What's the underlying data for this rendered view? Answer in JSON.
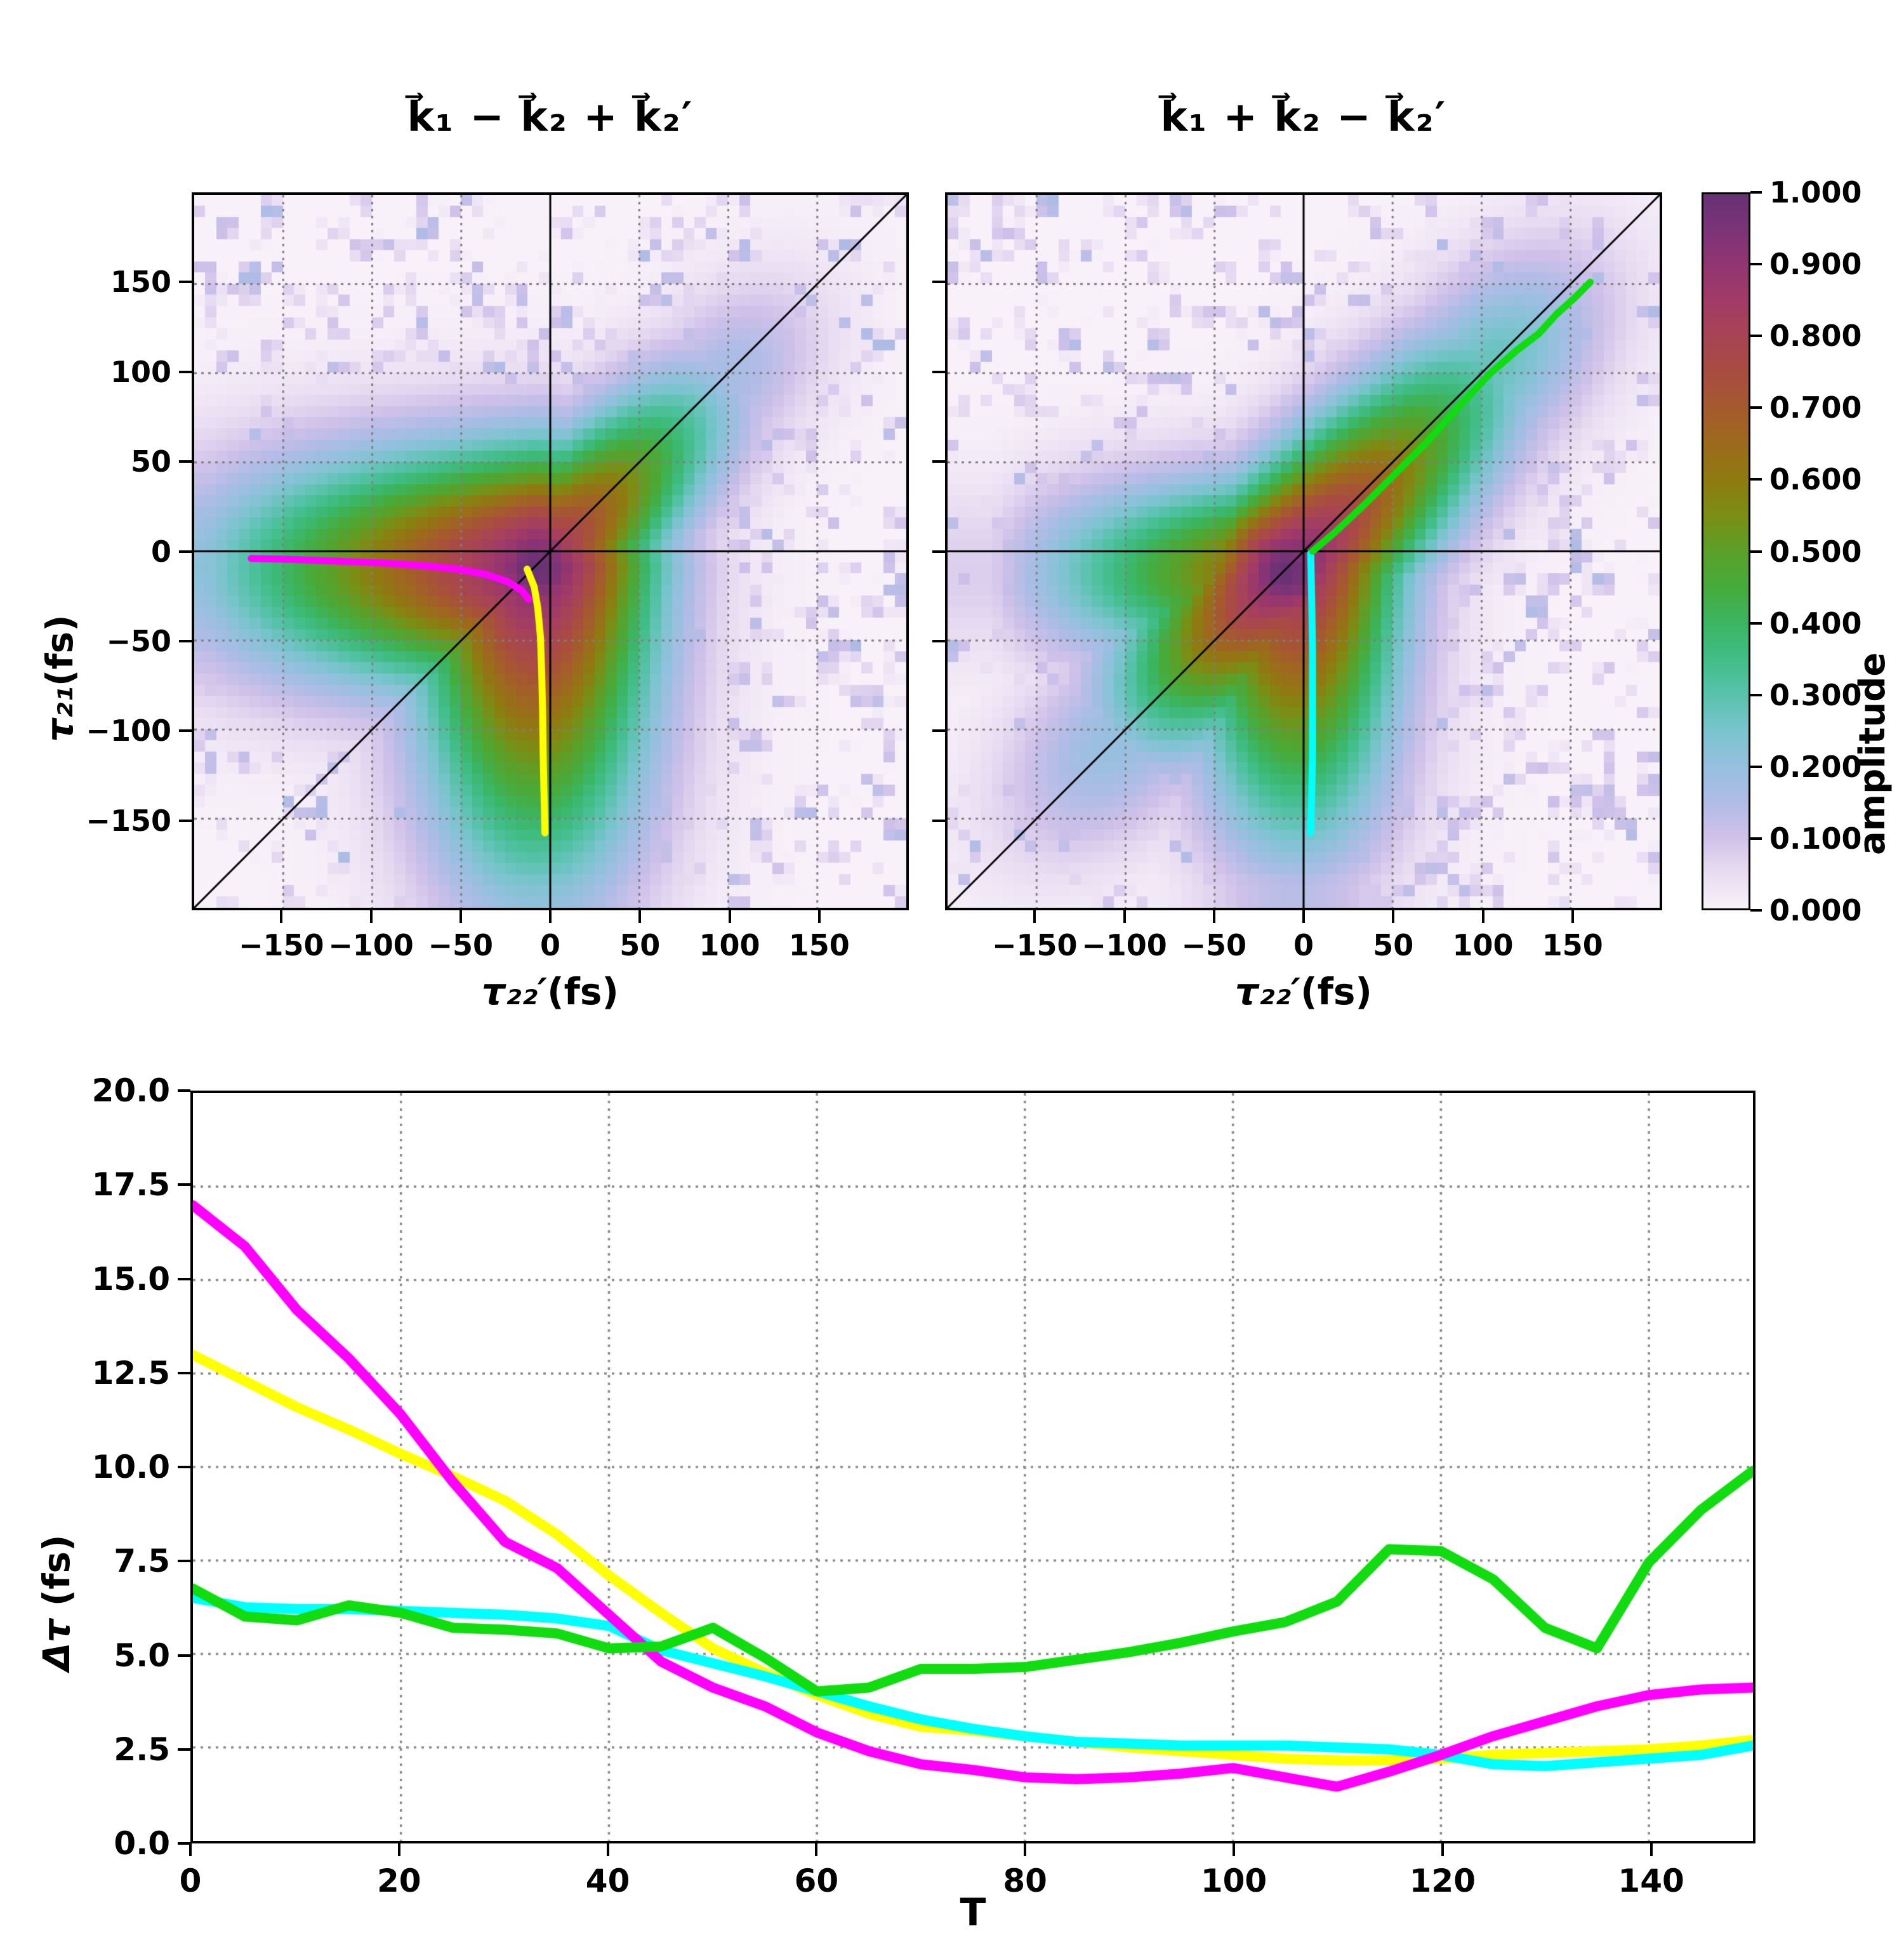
{
  "figure": {
    "background": "#ffffff"
  },
  "colormap": {
    "stops": [
      [
        0.0,
        "#f8f1f9"
      ],
      [
        0.05,
        "#e8dcf2"
      ],
      [
        0.1,
        "#cfc1e9"
      ],
      [
        0.15,
        "#b0bce6"
      ],
      [
        0.2,
        "#95c0de"
      ],
      [
        0.25,
        "#79c4cd"
      ],
      [
        0.3,
        "#58c2ab"
      ],
      [
        0.35,
        "#41bd87"
      ],
      [
        0.4,
        "#3bb562"
      ],
      [
        0.45,
        "#47ab3b"
      ],
      [
        0.5,
        "#5ba029"
      ],
      [
        0.55,
        "#7b8e15"
      ],
      [
        0.6,
        "#8f7a11"
      ],
      [
        0.65,
        "#9d6a1d"
      ],
      [
        0.7,
        "#a55a2e"
      ],
      [
        0.75,
        "#a94c41"
      ],
      [
        0.8,
        "#a84455"
      ],
      [
        0.85,
        "#a23b66"
      ],
      [
        0.9,
        "#923571"
      ],
      [
        0.95,
        "#7c3378"
      ],
      [
        1.0,
        "#663273"
      ]
    ]
  },
  "colorbar": {
    "label": "amplitude",
    "ticks": [
      {
        "v": 0.0,
        "label": "0.000"
      },
      {
        "v": 0.1,
        "label": "0.100"
      },
      {
        "v": 0.2,
        "label": "0.200"
      },
      {
        "v": 0.3,
        "label": "0.300"
      },
      {
        "v": 0.4,
        "label": "0.400"
      },
      {
        "v": 0.5,
        "label": "0.500"
      },
      {
        "v": 0.6,
        "label": "0.600"
      },
      {
        "v": 0.7,
        "label": "0.700"
      },
      {
        "v": 0.8,
        "label": "0.800"
      },
      {
        "v": 0.9,
        "label": "0.900"
      },
      {
        "v": 1.0,
        "label": "1.000"
      }
    ]
  },
  "chart_data": [
    {
      "type": "heatmap",
      "id": "left",
      "title": "k⃗₁ − k⃗₂ + k⃗₂′",
      "xlabel_math": "τ₂₂′",
      "xlabel_rest": "(fs)",
      "ylabel_math": "τ₂₁",
      "ylabel_rest": "(fs)",
      "xlim": [
        -200,
        200
      ],
      "ylim": [
        -200,
        200
      ],
      "xticks": [
        {
          "v": -150,
          "label": "−150"
        },
        {
          "v": -100,
          "label": "−100"
        },
        {
          "v": -50,
          "label": "−50"
        },
        {
          "v": 0,
          "label": "0"
        },
        {
          "v": 50,
          "label": "50"
        },
        {
          "v": 100,
          "label": "100"
        },
        {
          "v": 150,
          "label": "150"
        }
      ],
      "yticks": [
        {
          "v": -150,
          "label": "−150"
        },
        {
          "v": -100,
          "label": "−100"
        },
        {
          "v": -50,
          "label": "−50"
        },
        {
          "v": 0,
          "label": "0"
        },
        {
          "v": 50,
          "label": "50"
        },
        {
          "v": 100,
          "label": "100"
        },
        {
          "v": 150,
          "label": "150"
        }
      ],
      "grid": true,
      "grid_n": 64,
      "ref_lines": [
        "x=0",
        "y=0",
        "y=x"
      ],
      "distribution": {
        "components": [
          {
            "kind": "core",
            "cx": -8,
            "cy": -10,
            "s": 34,
            "amp": 1.0
          },
          {
            "kind": "armH",
            "cx": -8,
            "cy": -10,
            "sy": 46,
            "sx": 28,
            "reach": 185,
            "drop": 0.78,
            "min": 0.2,
            "amp": 0.97
          },
          {
            "kind": "armV",
            "cx": -8,
            "cy": -10,
            "sx": 46,
            "sy": 28,
            "reach": 185,
            "drop": 0.78,
            "min": 0.2,
            "amp": 0.97
          },
          {
            "kind": "armD",
            "cx": -8,
            "cy": -10,
            "sv": 30,
            "reachPos": 150,
            "dropPos": 0.82,
            "reachNeg": 30,
            "dropNeg": 0.95,
            "tail": 45,
            "amp": 0.93
          }
        ],
        "speckle": {
          "threshold": 0.6,
          "gain": 0.4
        }
      },
      "overlays": [
        {
          "name": "magenta-ridge-curve",
          "color": "#ff00ff",
          "points": [
            [
              -168,
              -4
            ],
            [
              -145,
              -4.5
            ],
            [
              -120,
              -5.5
            ],
            [
              -95,
              -6.5
            ],
            [
              -72,
              -8
            ],
            [
              -52,
              -10
            ],
            [
              -36,
              -13
            ],
            [
              -24,
              -17
            ],
            [
              -16,
              -22
            ],
            [
              -12,
              -27
            ]
          ]
        },
        {
          "name": "yellow-ridge-curve",
          "color": "#ffff00",
          "points": [
            [
              -13,
              -10
            ],
            [
              -9,
              -20
            ],
            [
              -7,
              -32
            ],
            [
              -5.5,
              -48
            ],
            [
              -4.8,
              -68
            ],
            [
              -4.3,
              -90
            ],
            [
              -4,
              -112
            ],
            [
              -3.6,
              -132
            ],
            [
              -3.2,
              -148
            ],
            [
              -3,
              -158
            ]
          ]
        }
      ]
    },
    {
      "type": "heatmap",
      "id": "right",
      "title": "k⃗₁ + k⃗₂ − k⃗₂′",
      "xlabel_math": "τ₂₂′",
      "xlabel_rest": "(fs)",
      "xlim": [
        -200,
        200
      ],
      "ylim": [
        -200,
        200
      ],
      "xticks": [
        {
          "v": -150,
          "label": "−150"
        },
        {
          "v": -100,
          "label": "−100"
        },
        {
          "v": -50,
          "label": "−50"
        },
        {
          "v": 0,
          "label": "0"
        },
        {
          "v": 50,
          "label": "50"
        },
        {
          "v": 100,
          "label": "100"
        },
        {
          "v": 150,
          "label": "150"
        }
      ],
      "yticks": [
        {
          "v": -150
        },
        {
          "v": -100
        },
        {
          "v": -50
        },
        {
          "v": 0
        },
        {
          "v": 50
        },
        {
          "v": 100
        },
        {
          "v": 150
        }
      ],
      "grid": true,
      "grid_n": 64,
      "ref_lines": [
        "x=0",
        "y=0",
        "y=x"
      ],
      "distribution": {
        "components": [
          {
            "kind": "core",
            "cx": -10,
            "cy": -12,
            "s": 32,
            "amp": 1.0
          },
          {
            "kind": "armD",
            "cx": -10,
            "cy": -12,
            "sv": 34,
            "reachPos": 160,
            "dropPos": 0.72,
            "reachNeg": 130,
            "dropNeg": 0.8,
            "tail": 55,
            "amp": 1.0
          },
          {
            "kind": "armV",
            "cx": -4,
            "cy": -12,
            "sx": 40,
            "sy": 26,
            "reach": 175,
            "drop": 0.85,
            "min": 0.12,
            "amp": 0.9
          },
          {
            "kind": "armH",
            "cx": -10,
            "cy": -12,
            "sy": 36,
            "sx": 26,
            "reach": 165,
            "drop": 0.9,
            "min": 0.08,
            "amp": 0.75
          }
        ],
        "speckle": {
          "threshold": 0.6,
          "gain": 0.4
        }
      },
      "overlays": [
        {
          "name": "cyan-ridge-curve",
          "color": "#00ffff",
          "points": [
            [
              4,
              -1
            ],
            [
              4.5,
              -25
            ],
            [
              5,
              -55
            ],
            [
              5,
              -85
            ],
            [
              5,
              -115
            ],
            [
              4.5,
              -140
            ],
            [
              4,
              -158
            ]
          ]
        },
        {
          "name": "green-ridge-curve",
          "color": "#10dc10",
          "points": [
            [
              5,
              0
            ],
            [
              18,
              11
            ],
            [
              35,
              27
            ],
            [
              52,
              44
            ],
            [
              70,
              62
            ],
            [
              88,
              82
            ],
            [
              105,
              100
            ],
            [
              120,
              113
            ],
            [
              132,
              122
            ],
            [
              142,
              133
            ],
            [
              152,
              142
            ],
            [
              161,
              151
            ]
          ]
        }
      ]
    },
    {
      "type": "line",
      "id": "bottom",
      "xlabel": "T",
      "ylabel_math": "Δτ",
      "ylabel_rest": " (fs)",
      "xlim": [
        0,
        150
      ],
      "ylim": [
        0,
        20
      ],
      "grid": true,
      "x": [
        0,
        5,
        10,
        15,
        20,
        25,
        30,
        35,
        40,
        45,
        50,
        55,
        60,
        65,
        70,
        75,
        80,
        85,
        90,
        95,
        100,
        105,
        110,
        115,
        120,
        125,
        130,
        135,
        140,
        145,
        150
      ],
      "series": [
        {
          "name": "yellow-trace",
          "color": "#ffff00",
          "values": [
            13.0,
            12.3,
            11.6,
            11.0,
            10.35,
            9.75,
            9.1,
            8.2,
            7.1,
            6.1,
            5.15,
            4.5,
            3.9,
            3.4,
            3.05,
            2.95,
            2.8,
            2.65,
            2.5,
            2.4,
            2.3,
            2.2,
            2.15,
            2.15,
            2.2,
            2.3,
            2.35,
            2.4,
            2.45,
            2.55,
            2.7
          ]
        },
        {
          "name": "cyan-trace",
          "color": "#00ffff",
          "values": [
            6.5,
            6.25,
            6.2,
            6.2,
            6.15,
            6.1,
            6.05,
            5.95,
            5.75,
            5.1,
            4.75,
            4.4,
            4.0,
            3.6,
            3.25,
            3.0,
            2.8,
            2.65,
            2.6,
            2.55,
            2.55,
            2.55,
            2.5,
            2.45,
            2.3,
            2.05,
            2.0,
            2.1,
            2.2,
            2.3,
            2.55
          ]
        },
        {
          "name": "magenta-trace",
          "color": "#ff00ff",
          "values": [
            17.0,
            15.9,
            14.2,
            12.9,
            11.4,
            9.6,
            8.0,
            7.3,
            6.05,
            4.8,
            4.1,
            3.6,
            2.9,
            2.4,
            2.05,
            1.9,
            1.7,
            1.65,
            1.7,
            1.8,
            1.95,
            1.7,
            1.45,
            1.85,
            2.3,
            2.8,
            3.2,
            3.6,
            3.9,
            4.05,
            4.1
          ]
        },
        {
          "name": "green-trace",
          "color": "#10dc10",
          "values": [
            6.75,
            6.0,
            5.9,
            6.3,
            6.1,
            5.7,
            5.65,
            5.55,
            5.15,
            5.2,
            5.7,
            4.9,
            4.0,
            4.1,
            4.6,
            4.6,
            4.65,
            4.85,
            5.05,
            5.3,
            5.6,
            5.85,
            6.4,
            7.8,
            7.75,
            7.0,
            5.7,
            5.15,
            7.45,
            8.85,
            9.9
          ]
        }
      ],
      "xticks": [
        {
          "v": 0,
          "label": "0"
        },
        {
          "v": 20,
          "label": "20"
        },
        {
          "v": 40,
          "label": "40"
        },
        {
          "v": 60,
          "label": "60"
        },
        {
          "v": 80,
          "label": "80"
        },
        {
          "v": 100,
          "label": "100"
        },
        {
          "v": 120,
          "label": "120"
        },
        {
          "v": 140,
          "label": "140"
        }
      ],
      "yticks": [
        {
          "v": 0,
          "label": "0.0"
        },
        {
          "v": 2.5,
          "label": "2.5"
        },
        {
          "v": 5,
          "label": "5.0"
        },
        {
          "v": 7.5,
          "label": "7.5"
        },
        {
          "v": 10,
          "label": "10.0"
        },
        {
          "v": 12.5,
          "label": "12.5"
        },
        {
          "v": 15,
          "label": "15.0"
        },
        {
          "v": 17.5,
          "label": "17.5"
        },
        {
          "v": 20,
          "label": "20.0"
        }
      ]
    }
  ]
}
